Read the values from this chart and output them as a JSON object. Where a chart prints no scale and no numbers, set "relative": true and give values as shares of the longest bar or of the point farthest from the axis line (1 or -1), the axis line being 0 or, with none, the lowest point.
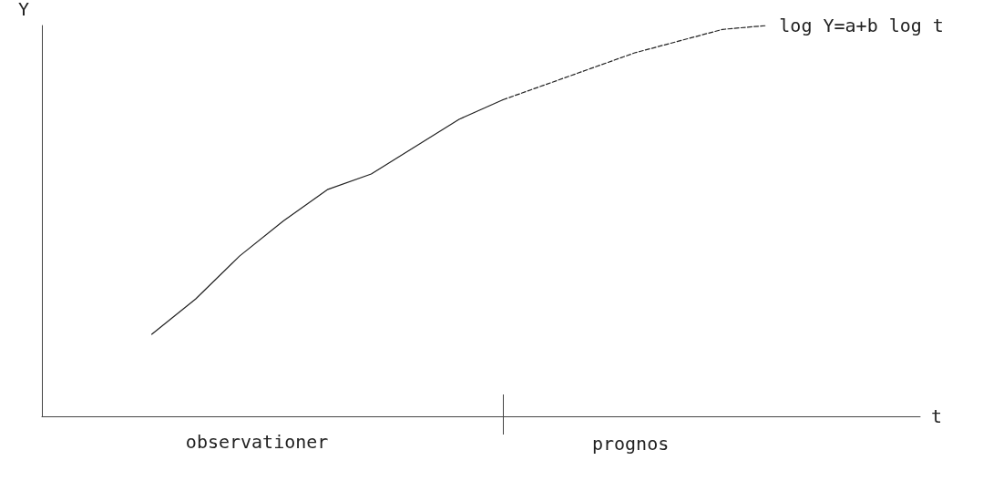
{
  "chart_data": {
    "type": "line",
    "relative": true,
    "xlabel": "t",
    "ylabel": "Y",
    "categories": [
      null,
      null,
      null,
      null,
      null,
      null,
      null,
      null,
      null,
      null,
      null,
      null,
      null,
      null,
      null,
      null,
      null,
      null,
      null,
      null
    ],
    "series": [
      {
        "color": "#222222",
        "line_style": "solid",
        "values": [
          null,
          null,
          0.21,
          0.3,
          0.41,
          0.5,
          0.58,
          0.62,
          0.69,
          0.76,
          0.81,
          null,
          null,
          null,
          null,
          null,
          null,
          null,
          null,
          null
        ]
      },
      {
        "color": "#222222",
        "line_style": "dashed",
        "values": [
          null,
          null,
          null,
          null,
          null,
          null,
          null,
          null,
          null,
          null,
          0.81,
          0.85,
          0.89,
          0.93,
          0.96,
          0.99,
          1.0,
          null,
          null,
          null
        ]
      }
    ],
    "annotations": [
      "log Y=a+b log t",
      "observationer",
      "prognos"
    ],
    "marker": "none",
    "grid": false
  }
}
